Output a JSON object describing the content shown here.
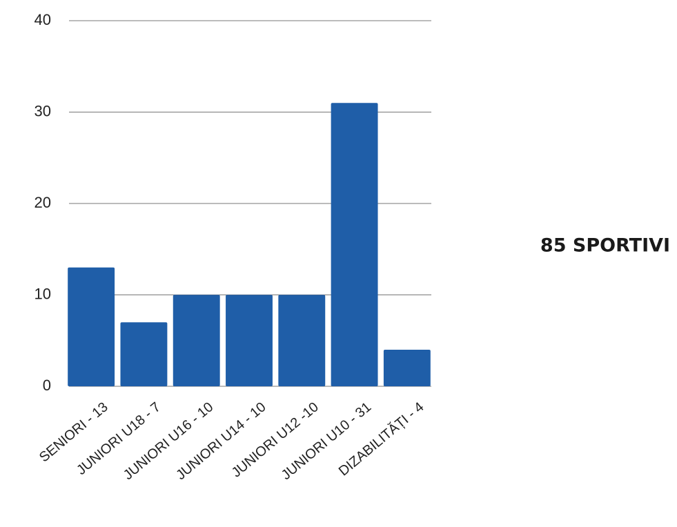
{
  "chart_data": {
    "type": "bar",
    "categories": [
      "SENIORI - 13",
      "JUNIORI U18 - 7",
      "JUNIORI U16 - 10",
      "JUNIORI U14 - 10",
      "JUNIORI U12 -10",
      "JUNIORI U10 - 31",
      "DIZABILITĂȚI - 4"
    ],
    "values": [
      13,
      7,
      10,
      10,
      10,
      31,
      4
    ],
    "color": "#1f5ea8",
    "ylim": [
      0,
      40
    ],
    "yticks": [
      0,
      10,
      20,
      30,
      40
    ],
    "grid": true,
    "annotation": "85 SPORTIVI"
  }
}
